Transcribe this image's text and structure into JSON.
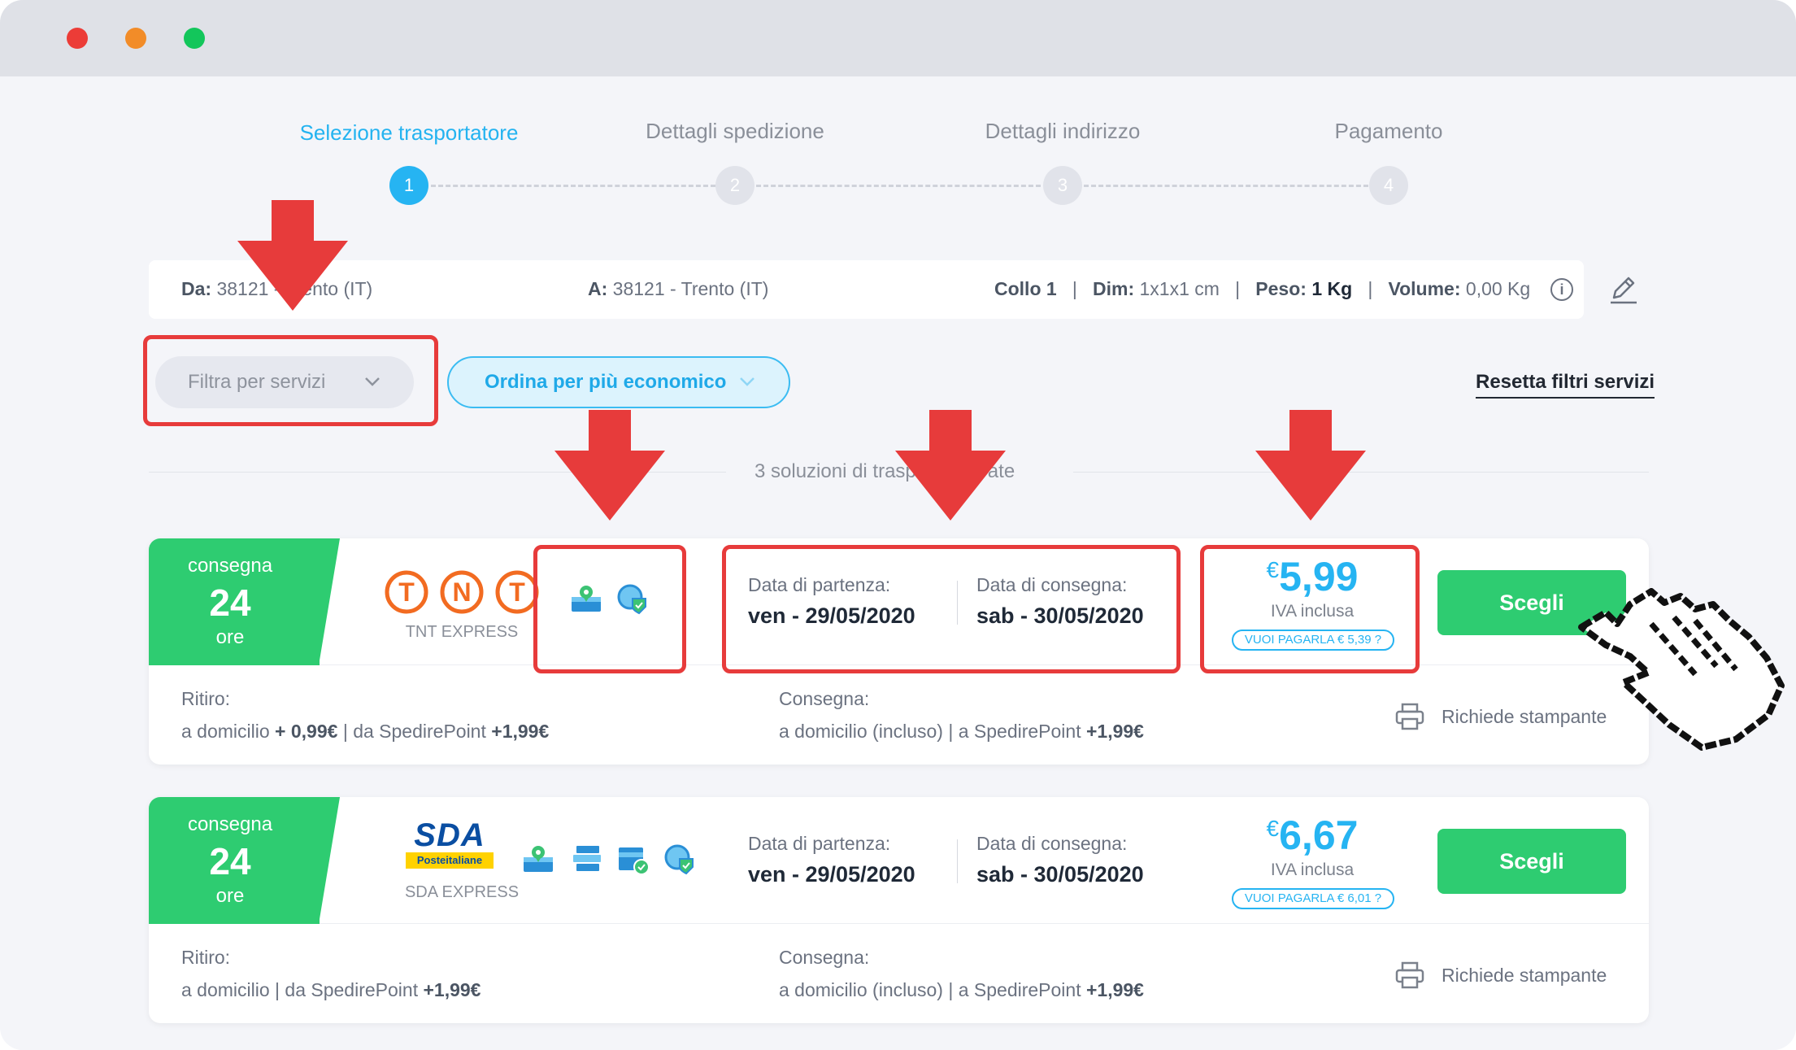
{
  "window": {
    "controls": [
      "close",
      "minimize",
      "zoom"
    ]
  },
  "stepper": {
    "steps": [
      {
        "label": "Selezione trasportatore",
        "number": "1",
        "active": true
      },
      {
        "label": "Dettagli spedizione",
        "number": "2",
        "active": false
      },
      {
        "label": "Dettagli indirizzo",
        "number": "3",
        "active": false
      },
      {
        "label": "Pagamento",
        "number": "4",
        "active": false
      }
    ]
  },
  "summary": {
    "from_label": "Da:",
    "from_value": "38121 - Trento (IT)",
    "to_label": "A:",
    "to_value": "38121 - Trento (IT)",
    "collo": "Collo 1",
    "sep": "|",
    "dim_label": "Dim:",
    "dim_value": "1x1x1 cm",
    "peso_label": "Peso:",
    "peso_value": "1 Kg",
    "volume_label": "Volume:",
    "volume_value": "0,00 Kg",
    "info_icon": "info-icon",
    "edit_icon": "pencil-icon"
  },
  "filters": {
    "filter_label": "Filtra per servizi",
    "order_label": "Ordina per più economico",
    "reset_label": "Resetta filtri servizi",
    "chevron": "⌄"
  },
  "results": {
    "count_text": "3 soluzioni di trasporto trovate"
  },
  "cards": [
    {
      "badge_top": "consegna",
      "badge_num": "24",
      "badge_unit": "ore",
      "carrier_name": "TNT EXPRESS",
      "services": [
        "map-pin-package-icon",
        "shield-globe-icon"
      ],
      "departure_label": "Data di partenza:",
      "departure_value": "ven - 29/05/2020",
      "delivery_label": "Data di consegna:",
      "delivery_value": "sab - 30/05/2020",
      "currency": "€",
      "price": "5,99",
      "iva": "IVA inclusa",
      "pay_pill": "VUOI PAGARLA € 5,39 ?",
      "choose_label": "Scegli",
      "pickup_label": "Ritiro:",
      "pickup_pre": "a domicilio",
      "pickup_extra": "+ 0,99€",
      "pickup_mid": "| da SpedirePoint",
      "pickup_extra2": "+1,99€",
      "consegna_label": "Consegna:",
      "consegna_pre": "a domicilio (incluso) | a SpedirePoint",
      "consegna_extra": "+1,99€",
      "printer_label": "Richiede stampante"
    },
    {
      "badge_top": "consegna",
      "badge_num": "24",
      "badge_unit": "ore",
      "carrier_name": "SDA EXPRESS",
      "logo_text": "SDA",
      "logo_sub": "Posteitaliane",
      "services": [
        "map-pin-package-icon",
        "stack-icon",
        "folder-check-icon",
        "shield-globe-icon"
      ],
      "departure_label": "Data di partenza:",
      "departure_value": "ven - 29/05/2020",
      "delivery_label": "Data di consegna:",
      "delivery_value": "sab - 30/05/2020",
      "currency": "€",
      "price": "6,67",
      "iva": "IVA inclusa",
      "pay_pill": "VUOI PAGARLA € 6,01 ?",
      "choose_label": "Scegli",
      "pickup_label": "Ritiro:",
      "pickup_pre": "a domicilio | da SpedirePoint",
      "pickup_extra": "+1,99€",
      "consegna_label": "Consegna:",
      "consegna_pre": "a domicilio (incluso) | a SpedirePoint",
      "consegna_extra": "+1,99€",
      "printer_label": "Richiede stampante"
    }
  ],
  "colors": {
    "accent": "#26b4f2",
    "green": "#2ecc71",
    "annotation_red": "#e73b3b",
    "tnt_orange": "#f26b21",
    "sda_blue": "#0a4ea2",
    "sda_yellow": "#ffd200"
  }
}
